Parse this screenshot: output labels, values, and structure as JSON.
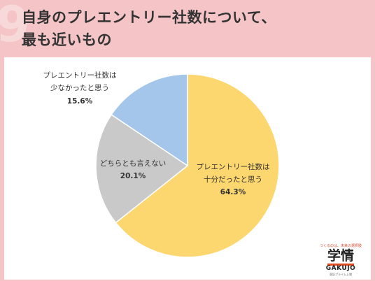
{
  "header": {
    "title_line1": "自身のプレエントリー社数について、",
    "title_line2": "最も近いもの"
  },
  "chart_data": {
    "type": "pie",
    "slices": [
      {
        "label_line1": "プレエントリー社数は",
        "label_line2": "十分だったと思う",
        "value": 64.3,
        "value_label": "64.3%",
        "color": "#fcd66f"
      },
      {
        "label_line1": "どちらとも言えない",
        "label_line2": "",
        "value": 20.1,
        "value_label": "20.1%",
        "color": "#c9c9c9"
      },
      {
        "label_line1": "プレエントリー社数は",
        "label_line2": "少なかったと思う",
        "value": 15.6,
        "value_label": "15.6%",
        "color": "#a3c6ea"
      }
    ]
  },
  "logo": {
    "tagline": "つくるのは、未来の選択肢",
    "kanji": "学情",
    "roman": "GAKUJO",
    "sub": "東証プライム上場"
  },
  "colors": {
    "background": "#f4c4c6",
    "panel": "#ffffff"
  }
}
